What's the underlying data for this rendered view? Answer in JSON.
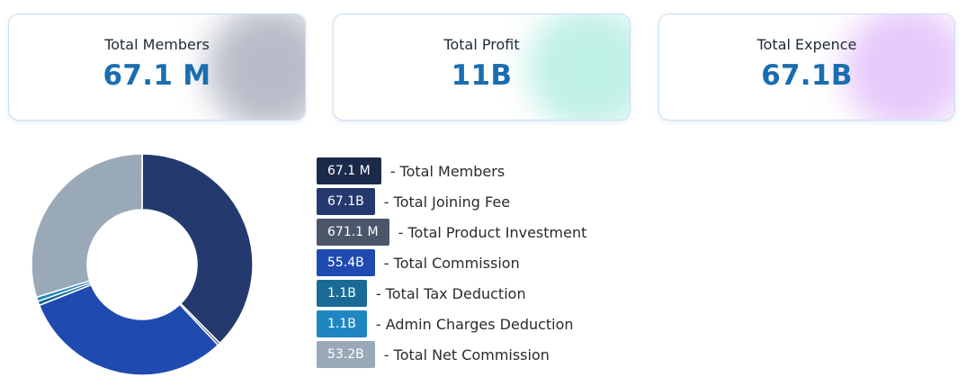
{
  "cards": [
    {
      "title": "Total Members",
      "value": "67.1 M",
      "blob_color": "#b9bcc8"
    },
    {
      "title": "Total Profit",
      "value": "11B",
      "blob_color": "#bff0e6"
    },
    {
      "title": "Total Expence",
      "value": "67.1B",
      "blob_color": "#e6c9fb"
    }
  ],
  "legend": [
    {
      "badge": "67.1 M",
      "label": "- Total Members",
      "color": "#1b2a4a"
    },
    {
      "badge": "67.1B",
      "label": "- Total Joining Fee",
      "color": "#243a6e"
    },
    {
      "badge": "671.1 M",
      "label": "- Total Product Investment",
      "color": "#4b566a"
    },
    {
      "badge": "55.4B",
      "label": "- Total Commission",
      "color": "#1f4ab0"
    },
    {
      "badge": "1.1B",
      "label": "- Total Tax Deduction",
      "color": "#1a6a96"
    },
    {
      "badge": "1.1B",
      "label": "- Admin Charges Deduction",
      "color": "#1f86c2"
    },
    {
      "badge": "53.2B",
      "label": "- Total Net Commission",
      "color": "#9aa9b8"
    }
  ],
  "chart_data": {
    "type": "pie",
    "donut": true,
    "categories": [
      "Total Members",
      "Total Joining Fee",
      "Total Product Investment",
      "Total Commission",
      "Total Tax Deduction",
      "Admin Charges Deduction",
      "Total Net Commission"
    ],
    "values": [
      0.0671,
      67.1,
      0.6711,
      55.4,
      1.1,
      1.1,
      53.2
    ],
    "colors": [
      "#1b2a4a",
      "#243a6e",
      "#4b566a",
      "#1f4ab0",
      "#1a6a96",
      "#1f86c2",
      "#9aa9b8"
    ],
    "start": "top",
    "direction": "clockwise"
  }
}
